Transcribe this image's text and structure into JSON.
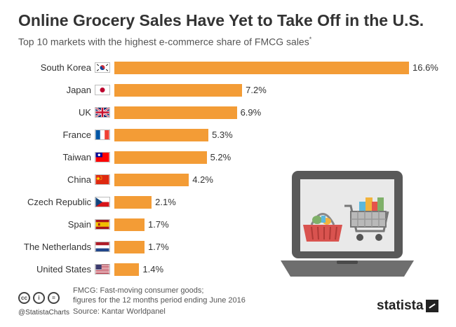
{
  "title": "Online Grocery Sales Have Yet to Take Off in the U.S.",
  "subtitle": "Top 10 markets with the highest e-commerce share of FMCG sales",
  "subtitle_mark": "*",
  "chart_data": {
    "type": "bar",
    "orientation": "horizontal",
    "categories": [
      "South Korea",
      "Japan",
      "UK",
      "France",
      "Taiwan",
      "China",
      "Czech Republic",
      "Spain",
      "The Netherlands",
      "United States"
    ],
    "values": [
      16.6,
      7.2,
      6.9,
      5.3,
      5.2,
      4.2,
      2.1,
      1.7,
      1.7,
      1.4
    ],
    "value_labels": [
      "16.6%",
      "7.2%",
      "6.9%",
      "5.3%",
      "5.2%",
      "4.2%",
      "2.1%",
      "1.7%",
      "1.7%",
      "1.4%"
    ],
    "unit": "%",
    "bar_color": "#f39c36",
    "grid": false,
    "legend": "none",
    "xlim": [
      0,
      16.6
    ]
  },
  "flags": [
    "south-korea-flag-icon",
    "japan-flag-icon",
    "uk-flag-icon",
    "france-flag-icon",
    "taiwan-flag-icon",
    "china-flag-icon",
    "czech-republic-flag-icon",
    "spain-flag-icon",
    "netherlands-flag-icon",
    "united-states-flag-icon"
  ],
  "footer": {
    "note_line1": "FMCG: Fast-moving consumer goods;",
    "note_line2": "figures for the 12 months period ending June 2016",
    "source": "Source: Kantar Worldpanel",
    "handle": "@StatistaCharts",
    "logo": "statista",
    "cc_icons": [
      "cc",
      "i",
      "="
    ]
  },
  "illustration": [
    "laptop-icon",
    "shopping-basket-icon",
    "shopping-cart-icon"
  ]
}
